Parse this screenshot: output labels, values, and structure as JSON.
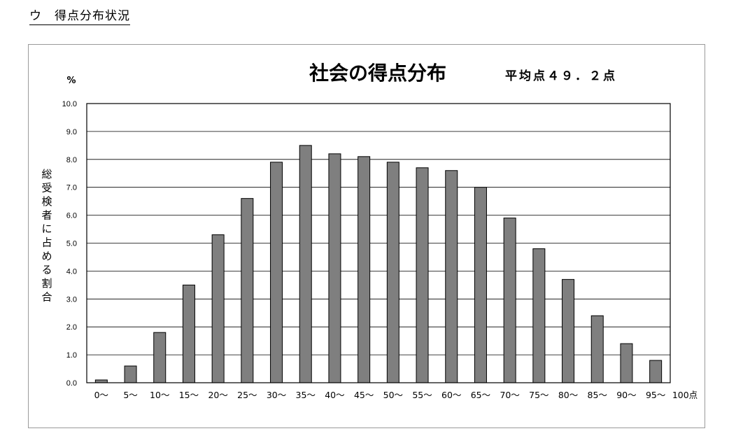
{
  "heading": "ウ　得点分布状況",
  "chart_data": {
    "type": "bar",
    "title": "社会の得点分布",
    "subtitle": "平均点４９．２点",
    "unit": "%",
    "ylabel": "総受検者に占める割合",
    "ylim": [
      0,
      10
    ],
    "yticks": [
      "0.0",
      "1.0",
      "2.0",
      "3.0",
      "4.0",
      "5.0",
      "6.0",
      "7.0",
      "8.0",
      "9.0",
      "10.0"
    ],
    "grid": true,
    "bar_color": "#7f7f7f",
    "categories": [
      "0～",
      "5～",
      "10～",
      "15～",
      "20～",
      "25～",
      "30～",
      "35～",
      "40～",
      "45～",
      "50～",
      "55～",
      "60～",
      "65～",
      "70～",
      "75～",
      "80～",
      "85～",
      "90～",
      "95～"
    ],
    "end_label": "100点",
    "values": [
      0.1,
      0.6,
      1.8,
      3.5,
      5.3,
      6.6,
      7.9,
      8.5,
      8.2,
      8.1,
      7.9,
      7.7,
      7.6,
      7.0,
      5.9,
      4.8,
      3.7,
      2.4,
      1.4,
      0.8
    ]
  }
}
